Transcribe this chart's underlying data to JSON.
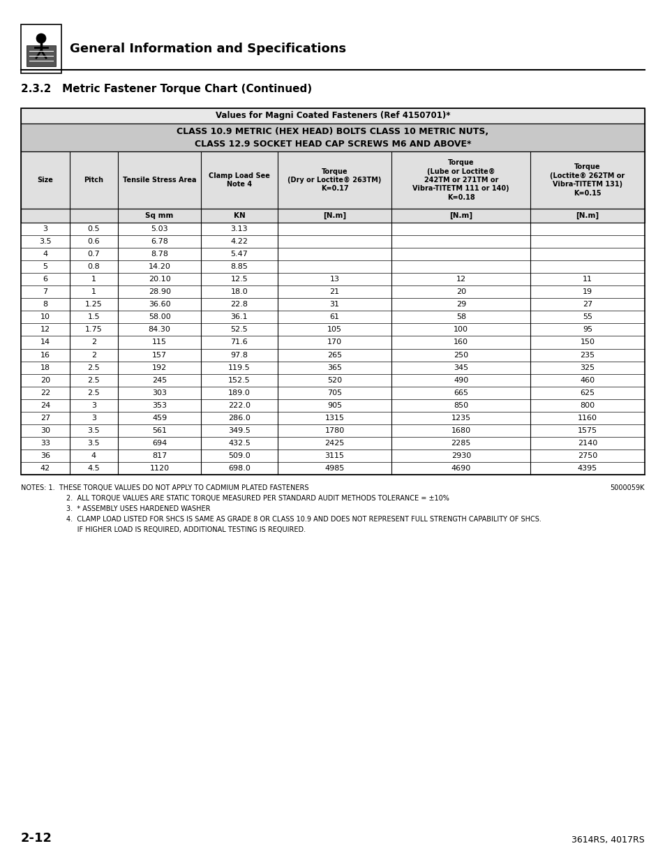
{
  "page_title": "General Information and Specifications",
  "section_title": "2.3.2   Metric Fastener Torque Chart (Continued)",
  "table_main_title": "Values for Magni Coated Fasteners (Ref 4150701)*",
  "table_subtitle1": "CLASS 10.9 METRIC (HEX HEAD) BOLTS CLASS 10 METRIC NUTS,",
  "table_subtitle2": "CLASS 12.9 SOCKET HEAD CAP SCREWS M6 AND ABOVE*",
  "col_headers": [
    "Size",
    "Pitch",
    "Tensile Stress Area",
    "Clamp Load See\nNote 4",
    "Torque\n(Dry or Loctite® 263TM)\nK=0.17",
    "Torque\n(Lube or Loctite®\n242TM or 271TM or\nVibra-TITETM 111 or 140)\nK=0.18",
    "Torque\n(Loctite® 262TM or\nVibra-TITETM 131)\nK=0.15"
  ],
  "col_units": [
    "",
    "",
    "Sq mm",
    "KN",
    "[N.m]",
    "[N.m]",
    "[N.m]"
  ],
  "rows": [
    [
      "3",
      "0.5",
      "5.03",
      "3.13",
      "",
      "",
      ""
    ],
    [
      "3.5",
      "0.6",
      "6.78",
      "4.22",
      "",
      "",
      ""
    ],
    [
      "4",
      "0.7",
      "8.78",
      "5.47",
      "",
      "",
      ""
    ],
    [
      "5",
      "0.8",
      "14.20",
      "8.85",
      "",
      "",
      ""
    ],
    [
      "6",
      "1",
      "20.10",
      "12.5",
      "13",
      "12",
      "11"
    ],
    [
      "7",
      "1",
      "28.90",
      "18.0",
      "21",
      "20",
      "19"
    ],
    [
      "8",
      "1.25",
      "36.60",
      "22.8",
      "31",
      "29",
      "27"
    ],
    [
      "10",
      "1.5",
      "58.00",
      "36.1",
      "61",
      "58",
      "55"
    ],
    [
      "12",
      "1.75",
      "84.30",
      "52.5",
      "105",
      "100",
      "95"
    ],
    [
      "14",
      "2",
      "115",
      "71.6",
      "170",
      "160",
      "150"
    ],
    [
      "16",
      "2",
      "157",
      "97.8",
      "265",
      "250",
      "235"
    ],
    [
      "18",
      "2.5",
      "192",
      "119.5",
      "365",
      "345",
      "325"
    ],
    [
      "20",
      "2.5",
      "245",
      "152.5",
      "520",
      "490",
      "460"
    ],
    [
      "22",
      "2.5",
      "303",
      "189.0",
      "705",
      "665",
      "625"
    ],
    [
      "24",
      "3",
      "353",
      "222.0",
      "905",
      "850",
      "800"
    ],
    [
      "27",
      "3",
      "459",
      "286.0",
      "1315",
      "1235",
      "1160"
    ],
    [
      "30",
      "3.5",
      "561",
      "349.5",
      "1780",
      "1680",
      "1575"
    ],
    [
      "33",
      "3.5",
      "694",
      "432.5",
      "2425",
      "2285",
      "2140"
    ],
    [
      "36",
      "4",
      "817",
      "509.0",
      "3115",
      "2930",
      "2750"
    ],
    [
      "42",
      "4.5",
      "1120",
      "698.0",
      "4985",
      "4690",
      "4395"
    ]
  ],
  "notes_line1": "NOTES: 1.  THESE TORQUE VALUES DO NOT APPLY TO CADMIUM PLATED FASTENERS",
  "notes_line2": "2.  ALL TORQUE VALUES ARE STATIC TORQUE MEASURED PER STANDARD AUDIT METHODS TOLERANCE = ±10%",
  "notes_line3": "3.  * ASSEMBLY USES HARDENED WASHER",
  "notes_line4": "4.  CLAMP LOAD LISTED FOR SHCS IS SAME AS GRADE 8 OR CLASS 10.9 AND DOES NOT REPRESENT FULL STRENGTH CAPABILITY OF SHCS.",
  "notes_line5": "     IF HIGHER LOAD IS REQUIRED, ADDITIONAL TESTING IS REQUIRED.",
  "ref_number": "5000059K",
  "page_number": "2-12",
  "footer_right": "3614RS, 4017RS"
}
